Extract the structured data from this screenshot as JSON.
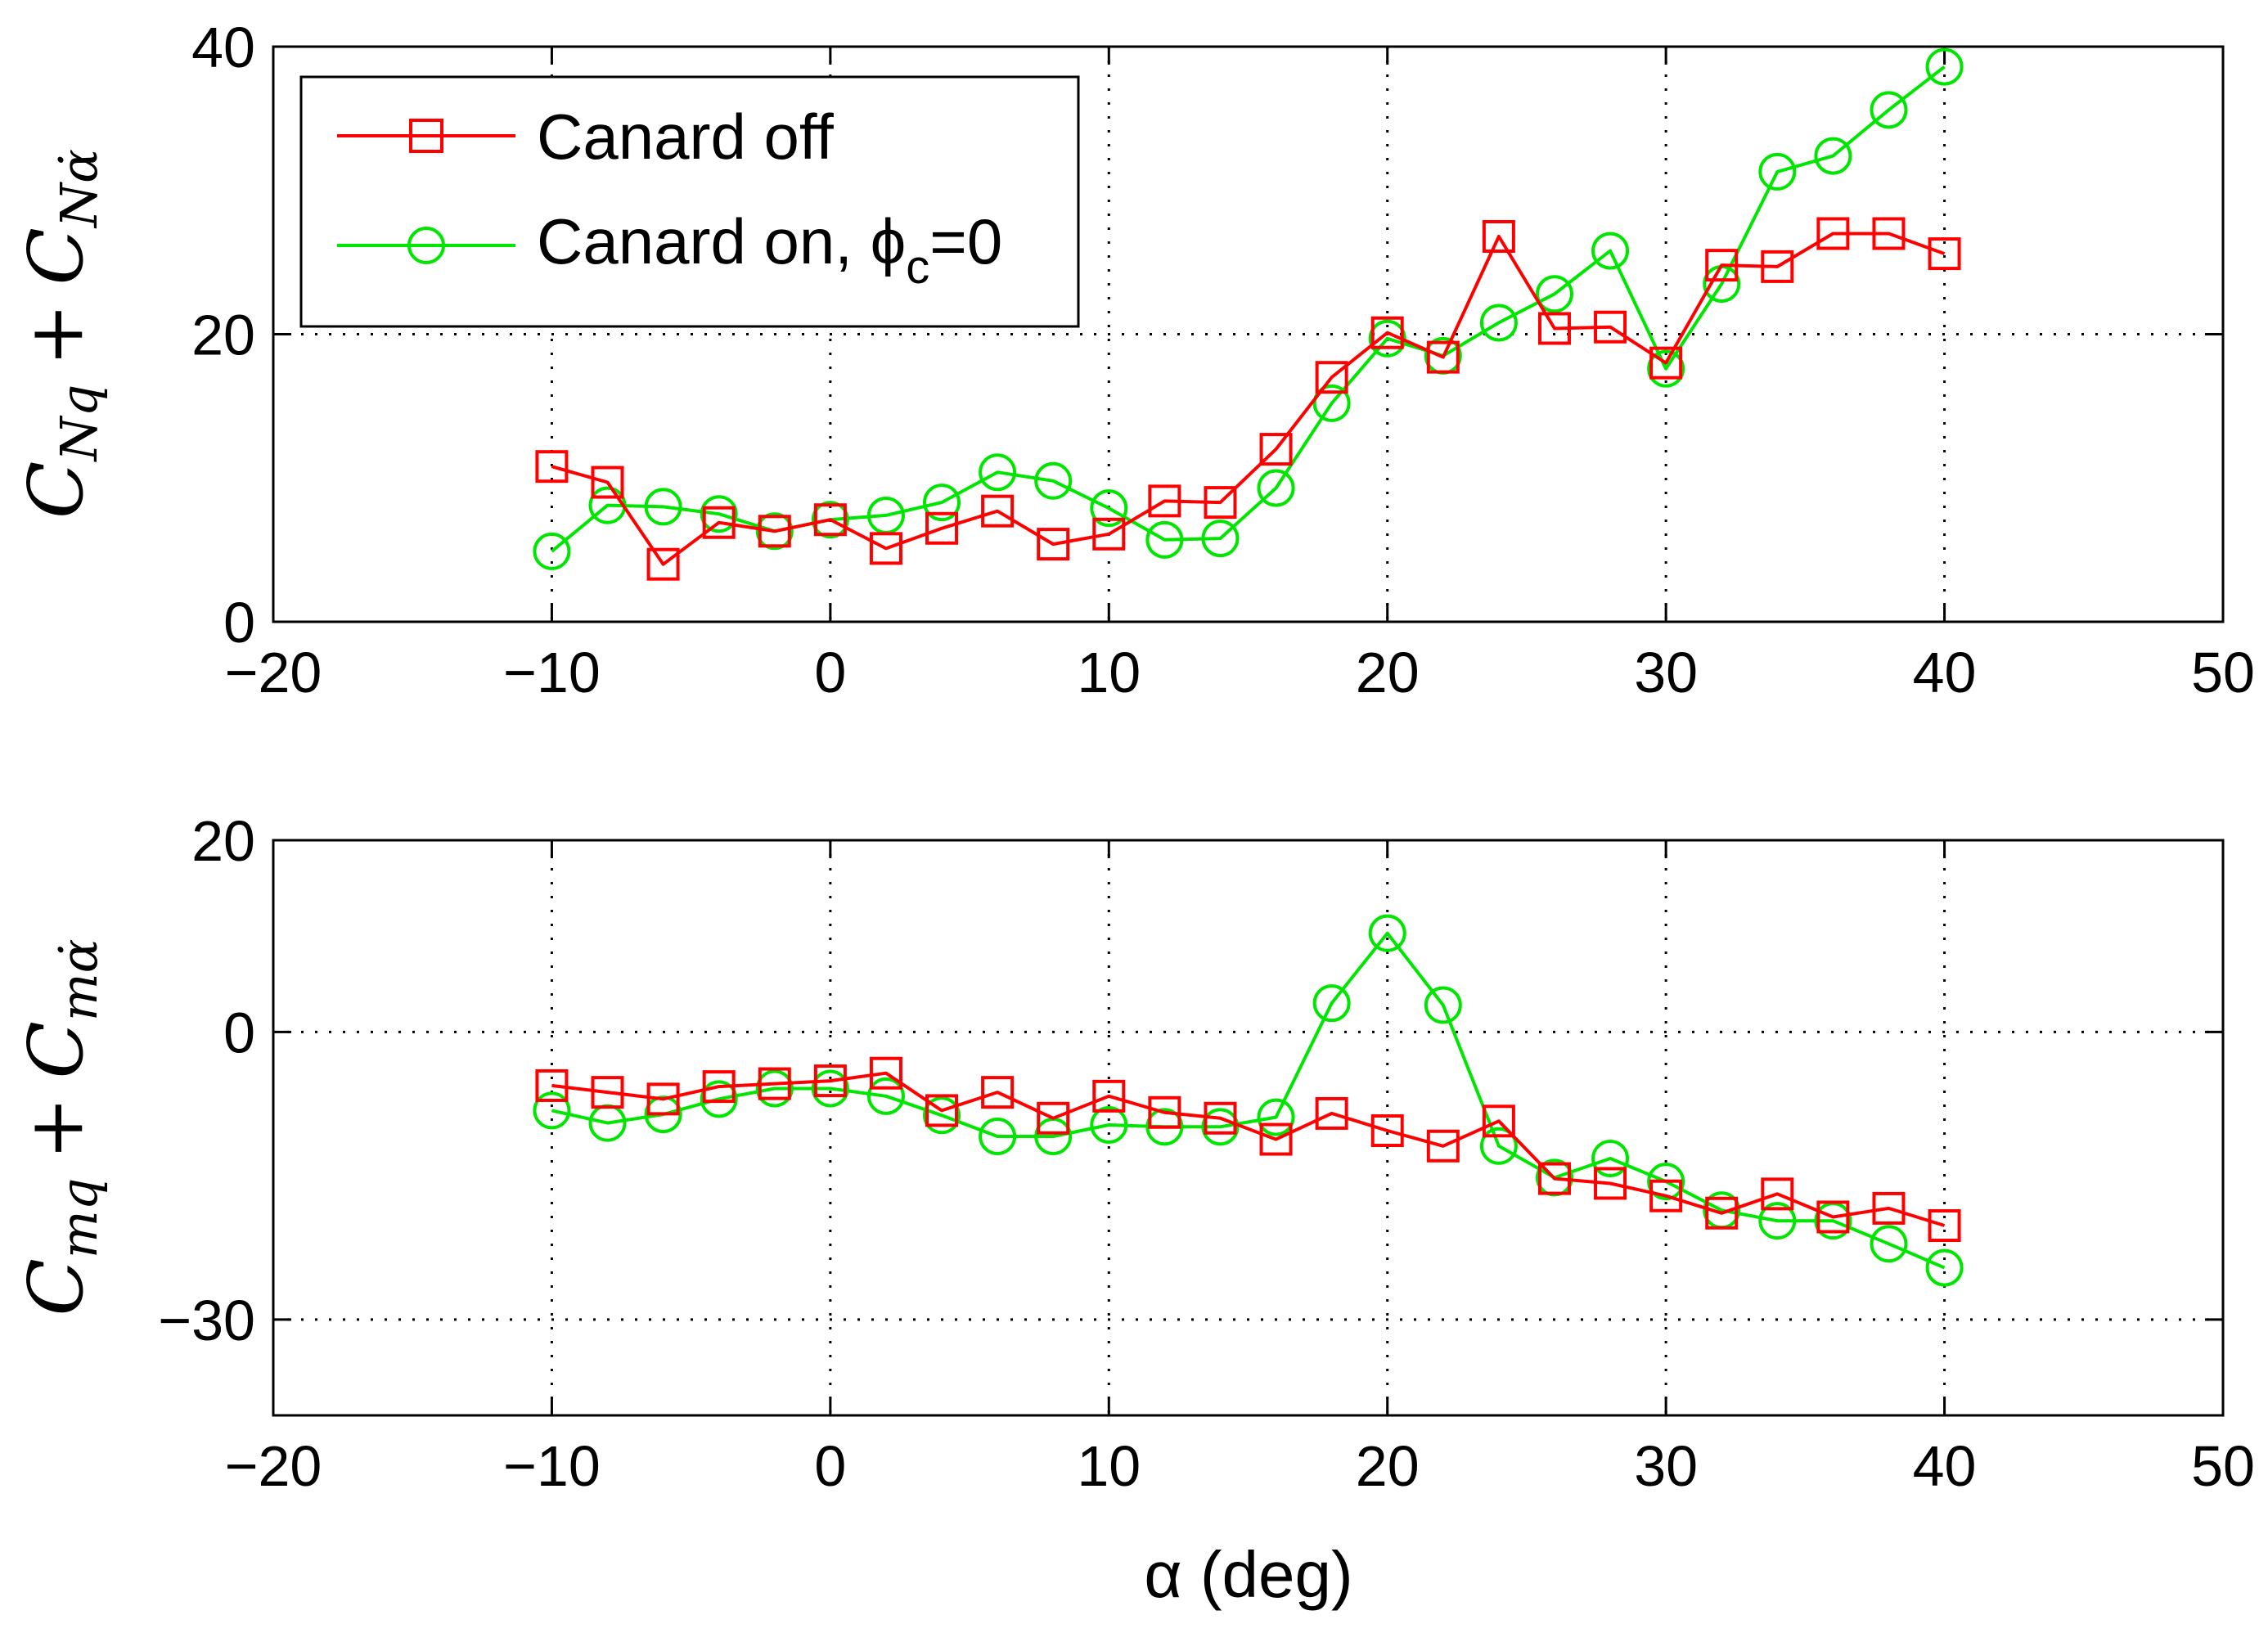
{
  "chart_data": [
    {
      "type": "line",
      "id": "top",
      "ylabel": {
        "main": "C",
        "sub1": "Nq",
        "op": "+",
        "main2": "C",
        "sub2": "Nα̇"
      },
      "xlabel": "",
      "xlim": [
        -20,
        50
      ],
      "ylim": [
        0,
        40
      ],
      "xticks": [
        -20,
        -10,
        0,
        10,
        20,
        30,
        40,
        50
      ],
      "xtick_labels": [
        "−20",
        "−10",
        "0",
        "10",
        "20",
        "30",
        "40",
        "50"
      ],
      "yticks": [
        0,
        20,
        40
      ],
      "ytick_labels": [
        "0",
        "20",
        "40"
      ],
      "grid": true,
      "legend": {
        "position": "top-left",
        "entries": [
          {
            "label": "Canard off"
          },
          {
            "label_pre": "Canard on, ",
            "phi": "ϕ",
            "sub": "c",
            "label_post": "=0"
          }
        ]
      },
      "x": [
        -10,
        -8,
        -6,
        -4,
        -2,
        0,
        2,
        4,
        6,
        8,
        10,
        12,
        14,
        16,
        18,
        20,
        22,
        24,
        26,
        28,
        30,
        32,
        34,
        36,
        38,
        40
      ],
      "series": [
        {
          "name": "Canard off",
          "color": "#ff0000",
          "marker": "square",
          "values": [
            10.8,
            9.7,
            4.0,
            6.9,
            6.3,
            7.1,
            5.1,
            6.5,
            7.7,
            5.4,
            6.1,
            8.4,
            8.3,
            12.0,
            17.0,
            20.1,
            18.4,
            26.8,
            20.4,
            20.5,
            18.0,
            24.8,
            24.7,
            27.0,
            27.0,
            25.6
          ]
        },
        {
          "name": "Canard on, ϕc=0",
          "color": "#00e600",
          "marker": "circle",
          "values": [
            4.9,
            8.1,
            8.0,
            7.5,
            6.3,
            7.1,
            7.4,
            8.3,
            10.4,
            9.8,
            7.9,
            5.7,
            5.8,
            9.3,
            15.2,
            19.7,
            18.5,
            20.8,
            22.8,
            25.8,
            17.6,
            23.5,
            31.3,
            32.4,
            35.6,
            38.6
          ]
        }
      ]
    },
    {
      "type": "line",
      "id": "bottom",
      "ylabel": {
        "main": "C",
        "sub1": "mq",
        "op": "+",
        "main2": "C",
        "sub2": "mα̇"
      },
      "xlabel": "α (deg)",
      "xlim": [
        -20,
        50
      ],
      "ylim": [
        -40,
        20
      ],
      "xticks": [
        -20,
        -10,
        0,
        10,
        20,
        30,
        40,
        50
      ],
      "xtick_labels": [
        "−20",
        "−10",
        "0",
        "10",
        "20",
        "30",
        "40",
        "50"
      ],
      "yticks": [
        -30,
        0,
        20
      ],
      "ytick_labels": [
        "−30",
        "0",
        "20"
      ],
      "grid": true,
      "x": [
        -10,
        -8,
        -6,
        -4,
        -2,
        0,
        2,
        4,
        6,
        8,
        10,
        12,
        14,
        16,
        18,
        20,
        22,
        24,
        26,
        28,
        30,
        32,
        34,
        36,
        38,
        40
      ],
      "series": [
        {
          "name": "Canard off",
          "color": "#ff0000",
          "marker": "square",
          "values": [
            -5.6,
            -6.3,
            -7.0,
            -5.7,
            -5.4,
            -5.1,
            -4.3,
            -8.2,
            -6.3,
            -9.0,
            -6.7,
            -8.4,
            -9.0,
            -11.2,
            -8.5,
            -10.3,
            -11.9,
            -9.3,
            -15.3,
            -15.8,
            -17.1,
            -18.9,
            -16.9,
            -19.3,
            -18.4,
            -20.2
          ]
        },
        {
          "name": "Canard on, ϕc=0",
          "color": "#00e600",
          "marker": "circle",
          "values": [
            -8.2,
            -9.5,
            -8.6,
            -7.0,
            -5.9,
            -5.9,
            -6.7,
            -8.7,
            -10.9,
            -10.9,
            -9.7,
            -9.9,
            -9.9,
            -8.9,
            3.0,
            10.3,
            2.8,
            -11.9,
            -15.2,
            -13.2,
            -15.6,
            -18.6,
            -19.7,
            -19.7,
            -22.1,
            -24.6
          ]
        }
      ]
    }
  ]
}
